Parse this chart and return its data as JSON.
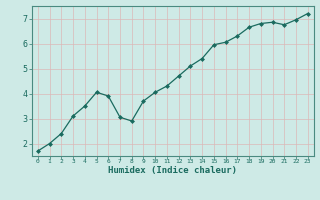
{
  "x": [
    0,
    1,
    2,
    3,
    4,
    5,
    6,
    7,
    8,
    9,
    10,
    11,
    12,
    13,
    14,
    15,
    16,
    17,
    18,
    19,
    20,
    21,
    22,
    23
  ],
  "y": [
    1.7,
    2.0,
    2.4,
    3.1,
    3.5,
    4.05,
    3.9,
    3.05,
    2.9,
    3.7,
    4.05,
    4.3,
    4.7,
    5.1,
    5.4,
    5.95,
    6.05,
    6.3,
    6.65,
    6.8,
    6.85,
    6.75,
    6.95,
    7.2
  ],
  "xlabel": "Humidex (Indice chaleur)",
  "ylim": [
    1.5,
    7.5
  ],
  "xlim": [
    -0.5,
    23.5
  ],
  "bg_color": "#ceeae6",
  "line_color": "#1a6b5f",
  "grid_color_minor": "#dbb8b8",
  "grid_color_major": "#c8a8a8",
  "tick_color": "#1a6b5f",
  "xlabel_color": "#1a6b5f",
  "yticks": [
    2,
    3,
    4,
    5,
    6,
    7
  ],
  "xticks": [
    0,
    1,
    2,
    3,
    4,
    5,
    6,
    7,
    8,
    9,
    10,
    11,
    12,
    13,
    14,
    15,
    16,
    17,
    18,
    19,
    20,
    21,
    22,
    23
  ],
  "spine_color": "#4a8a80",
  "figsize": [
    3.2,
    2.0
  ],
  "dpi": 100
}
